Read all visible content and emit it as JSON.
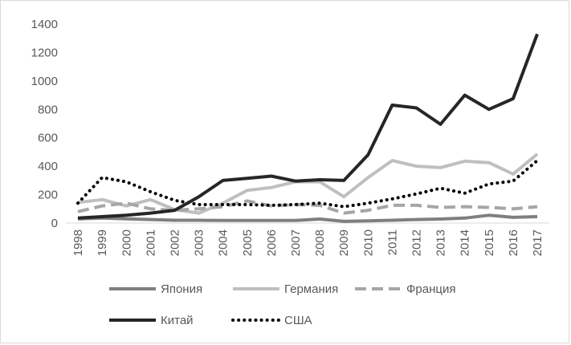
{
  "chart_data": {
    "type": "line",
    "title": "",
    "xlabel": "",
    "ylabel": "",
    "ylim": [
      0,
      1400
    ],
    "yticks": [
      0,
      200,
      400,
      600,
      800,
      1000,
      1200,
      1400
    ],
    "grid": false,
    "legend_position": "bottom",
    "categories": [
      "1998",
      "1999",
      "2000",
      "2001",
      "2002",
      "2003",
      "2004",
      "2005",
      "2006",
      "2007",
      "2008",
      "2009",
      "2010",
      "2011",
      "2012",
      "2013",
      "2014",
      "2015",
      "2016",
      "2017"
    ],
    "series": [
      {
        "name": "Япония",
        "color": "#7f7f7f",
        "dash": "solid",
        "values": [
          30,
          35,
          30,
          25,
          20,
          20,
          18,
          18,
          18,
          18,
          28,
          12,
          15,
          20,
          25,
          28,
          35,
          55,
          40,
          45
        ]
      },
      {
        "name": "Германия",
        "color": "#bfbfbf",
        "dash": "solid",
        "values": [
          145,
          165,
          120,
          165,
          95,
          70,
          140,
          230,
          250,
          290,
          290,
          185,
          320,
          440,
          400,
          390,
          435,
          425,
          345,
          485
        ]
      },
      {
        "name": "Франция",
        "color": "#a6a6a6",
        "dash": "dash",
        "values": [
          80,
          120,
          140,
          100,
          90,
          100,
          115,
          155,
          120,
          130,
          125,
          70,
          90,
          125,
          125,
          110,
          115,
          110,
          100,
          115
        ]
      },
      {
        "name": "Китай",
        "color": "#262626",
        "dash": "solid",
        "values": [
          35,
          45,
          55,
          70,
          90,
          185,
          300,
          315,
          330,
          295,
          305,
          300,
          480,
          830,
          810,
          695,
          900,
          800,
          875,
          1330
        ]
      },
      {
        "name": "США",
        "color": "#000000",
        "dash": "dot",
        "values": [
          140,
          320,
          290,
          220,
          160,
          130,
          130,
          130,
          125,
          130,
          140,
          115,
          140,
          170,
          205,
          245,
          210,
          275,
          295,
          440
        ]
      }
    ]
  }
}
